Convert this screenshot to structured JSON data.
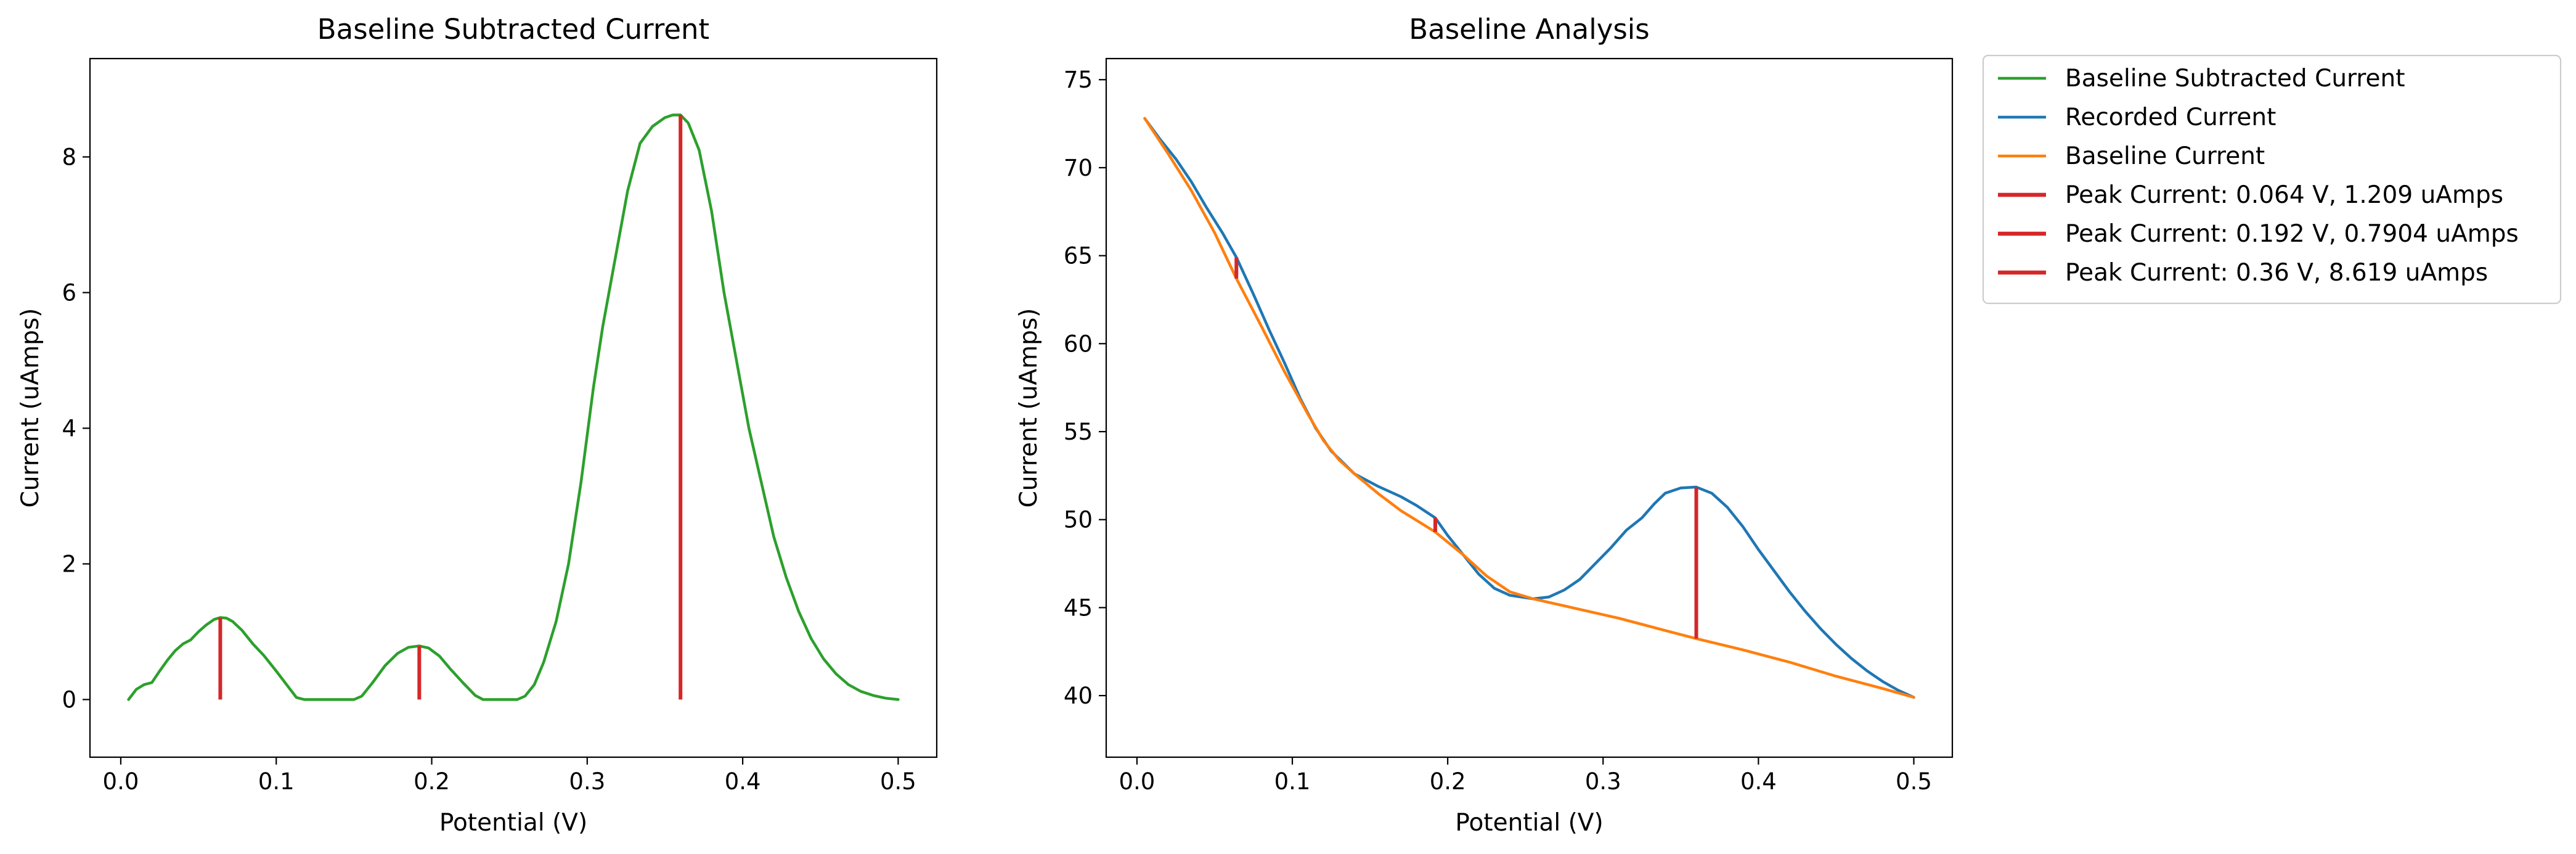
{
  "chart_data": [
    {
      "type": "line",
      "title": "Baseline Subtracted Current",
      "xlabel": "Potential (V)",
      "ylabel": "Current (uAmps)",
      "xlim": [
        -0.0198,
        0.5248
      ],
      "ylim": [
        -0.85,
        9.45
      ],
      "xticks": [
        0.0,
        0.1,
        0.2,
        0.3,
        0.4,
        0.5
      ],
      "xtick_labels": [
        "0.0",
        "0.1",
        "0.2",
        "0.3",
        "0.4",
        "0.5"
      ],
      "yticks": [
        0,
        2,
        4,
        6,
        8
      ],
      "ytick_labels": [
        "0",
        "2",
        "4",
        "6",
        "8"
      ],
      "grid": false,
      "series": [
        {
          "name": "",
          "color": "#2ca02c",
          "points": [
            [
              0.005,
              0.0
            ],
            [
              0.01,
              0.15
            ],
            [
              0.015,
              0.22
            ],
            [
              0.02,
              0.25
            ],
            [
              0.025,
              0.42
            ],
            [
              0.03,
              0.58
            ],
            [
              0.035,
              0.72
            ],
            [
              0.04,
              0.82
            ],
            [
              0.045,
              0.88
            ],
            [
              0.05,
              1.0
            ],
            [
              0.055,
              1.1
            ],
            [
              0.06,
              1.18
            ],
            [
              0.064,
              1.209
            ],
            [
              0.068,
              1.2
            ],
            [
              0.072,
              1.15
            ],
            [
              0.078,
              1.02
            ],
            [
              0.085,
              0.82
            ],
            [
              0.092,
              0.65
            ],
            [
              0.1,
              0.42
            ],
            [
              0.108,
              0.18
            ],
            [
              0.113,
              0.03
            ],
            [
              0.118,
              0.0
            ],
            [
              0.15,
              0.0
            ],
            [
              0.155,
              0.05
            ],
            [
              0.162,
              0.25
            ],
            [
              0.17,
              0.5
            ],
            [
              0.178,
              0.68
            ],
            [
              0.185,
              0.77
            ],
            [
              0.192,
              0.7904
            ],
            [
              0.198,
              0.76
            ],
            [
              0.205,
              0.64
            ],
            [
              0.212,
              0.45
            ],
            [
              0.22,
              0.25
            ],
            [
              0.228,
              0.06
            ],
            [
              0.233,
              0.0
            ],
            [
              0.255,
              0.0
            ],
            [
              0.26,
              0.05
            ],
            [
              0.266,
              0.22
            ],
            [
              0.272,
              0.55
            ],
            [
              0.28,
              1.15
            ],
            [
              0.288,
              2.0
            ],
            [
              0.296,
              3.2
            ],
            [
              0.304,
              4.6
            ],
            [
              0.31,
              5.5
            ],
            [
              0.318,
              6.5
            ],
            [
              0.326,
              7.5
            ],
            [
              0.334,
              8.2
            ],
            [
              0.342,
              8.45
            ],
            [
              0.35,
              8.58
            ],
            [
              0.355,
              8.618
            ],
            [
              0.36,
              8.619
            ],
            [
              0.365,
              8.5
            ],
            [
              0.372,
              8.1
            ],
            [
              0.38,
              7.2
            ],
            [
              0.388,
              6.0
            ],
            [
              0.396,
              5.0
            ],
            [
              0.404,
              4.0
            ],
            [
              0.412,
              3.2
            ],
            [
              0.42,
              2.4
            ],
            [
              0.428,
              1.8
            ],
            [
              0.436,
              1.3
            ],
            [
              0.444,
              0.9
            ],
            [
              0.452,
              0.6
            ],
            [
              0.46,
              0.38
            ],
            [
              0.468,
              0.22
            ],
            [
              0.476,
              0.12
            ],
            [
              0.484,
              0.06
            ],
            [
              0.492,
              0.02
            ],
            [
              0.5,
              0.0
            ]
          ]
        }
      ],
      "peaks": [
        {
          "x": 0.064,
          "y0": 0.0,
          "y1": 1.209,
          "color": "#d62728"
        },
        {
          "x": 0.192,
          "y0": 0.0,
          "y1": 0.7904,
          "color": "#d62728"
        },
        {
          "x": 0.36,
          "y0": 0.0,
          "y1": 8.619,
          "color": "#d62728"
        }
      ]
    },
    {
      "type": "line",
      "title": "Baseline Analysis",
      "xlabel": "Potential (V)",
      "ylabel": "Current (uAmps)",
      "xlim": [
        -0.0198,
        0.5248
      ],
      "ylim": [
        36.5,
        76.2
      ],
      "xticks": [
        0.0,
        0.1,
        0.2,
        0.3,
        0.4,
        0.5
      ],
      "xtick_labels": [
        "0.0",
        "0.1",
        "0.2",
        "0.3",
        "0.4",
        "0.5"
      ],
      "yticks": [
        40,
        45,
        50,
        55,
        60,
        65,
        70,
        75
      ],
      "ytick_labels": [
        "40",
        "45",
        "50",
        "55",
        "60",
        "65",
        "70",
        "75"
      ],
      "grid": false,
      "legend": "outside-right",
      "series": [
        {
          "name": "Recorded Current",
          "color": "#1f77b4",
          "points": [
            [
              0.005,
              72.8
            ],
            [
              0.015,
              71.6
            ],
            [
              0.025,
              70.5
            ],
            [
              0.035,
              69.2
            ],
            [
              0.045,
              67.7
            ],
            [
              0.055,
              66.3
            ],
            [
              0.064,
              64.9
            ],
            [
              0.075,
              62.8
            ],
            [
              0.085,
              60.8
            ],
            [
              0.095,
              58.9
            ],
            [
              0.105,
              56.9
            ],
            [
              0.115,
              55.2
            ],
            [
              0.125,
              53.9
            ],
            [
              0.14,
              52.6
            ],
            [
              0.155,
              51.9
            ],
            [
              0.17,
              51.3
            ],
            [
              0.18,
              50.8
            ],
            [
              0.192,
              50.1
            ],
            [
              0.2,
              49.1
            ],
            [
              0.21,
              48.0
            ],
            [
              0.22,
              46.9
            ],
            [
              0.23,
              46.1
            ],
            [
              0.24,
              45.7
            ],
            [
              0.255,
              45.5
            ],
            [
              0.265,
              45.6
            ],
            [
              0.275,
              46.0
            ],
            [
              0.285,
              46.6
            ],
            [
              0.295,
              47.5
            ],
            [
              0.305,
              48.4
            ],
            [
              0.315,
              49.4
            ],
            [
              0.325,
              50.1
            ],
            [
              0.333,
              50.9
            ],
            [
              0.34,
              51.5
            ],
            [
              0.35,
              51.8
            ],
            [
              0.36,
              51.85
            ],
            [
              0.37,
              51.5
            ],
            [
              0.38,
              50.7
            ],
            [
              0.39,
              49.6
            ],
            [
              0.4,
              48.3
            ],
            [
              0.41,
              47.1
            ],
            [
              0.42,
              45.9
            ],
            [
              0.43,
              44.8
            ],
            [
              0.44,
              43.8
            ],
            [
              0.45,
              42.9
            ],
            [
              0.46,
              42.1
            ],
            [
              0.47,
              41.4
            ],
            [
              0.48,
              40.8
            ],
            [
              0.49,
              40.3
            ],
            [
              0.5,
              39.9
            ]
          ]
        },
        {
          "name": "Baseline Current",
          "color": "#ff7f0e",
          "points": [
            [
              0.005,
              72.8
            ],
            [
              0.02,
              70.8
            ],
            [
              0.035,
              68.7
            ],
            [
              0.05,
              66.3
            ],
            [
              0.064,
              63.7
            ],
            [
              0.08,
              61.0
            ],
            [
              0.095,
              58.4
            ],
            [
              0.11,
              56.0
            ],
            [
              0.12,
              54.5
            ],
            [
              0.13,
              53.4
            ],
            [
              0.14,
              52.6
            ],
            [
              0.155,
              51.5
            ],
            [
              0.17,
              50.5
            ],
            [
              0.192,
              49.3
            ],
            [
              0.21,
              48.0
            ],
            [
              0.225,
              46.8
            ],
            [
              0.24,
              45.9
            ],
            [
              0.255,
              45.5
            ],
            [
              0.28,
              45.0
            ],
            [
              0.31,
              44.4
            ],
            [
              0.34,
              43.7
            ],
            [
              0.36,
              43.24
            ],
            [
              0.39,
              42.6
            ],
            [
              0.42,
              41.9
            ],
            [
              0.45,
              41.1
            ],
            [
              0.48,
              40.4
            ],
            [
              0.5,
              39.9
            ]
          ]
        }
      ],
      "peaks": [
        {
          "x": 0.064,
          "y0": 63.7,
          "y1": 64.9,
          "color": "#d62728"
        },
        {
          "x": 0.192,
          "y0": 49.3,
          "y1": 50.1,
          "color": "#d62728"
        },
        {
          "x": 0.36,
          "y0": 43.24,
          "y1": 51.85,
          "color": "#d62728"
        }
      ]
    }
  ],
  "legend": {
    "entries": [
      {
        "label": "Baseline Subtracted Current",
        "color": "#2ca02c",
        "kind": "line"
      },
      {
        "label": "Recorded Current",
        "color": "#1f77b4",
        "kind": "line"
      },
      {
        "label": "Baseline Current",
        "color": "#ff7f0e",
        "kind": "line"
      },
      {
        "label": "Peak Current: 0.064 V, 1.209 uAmps",
        "color": "#d62728",
        "kind": "bar"
      },
      {
        "label": "Peak Current: 0.192 V, 0.7904 uAmps",
        "color": "#d62728",
        "kind": "bar"
      },
      {
        "label": "Peak Current: 0.36 V, 8.619 uAmps",
        "color": "#d62728",
        "kind": "bar"
      }
    ]
  }
}
